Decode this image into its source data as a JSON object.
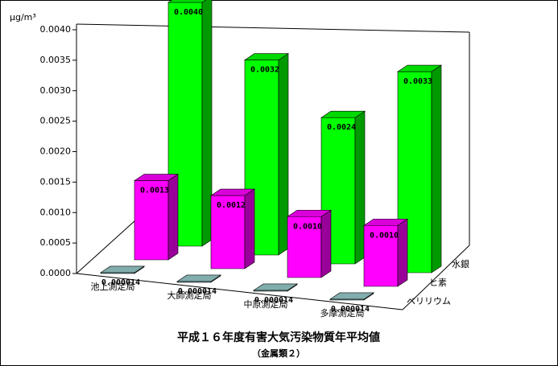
{
  "chart_data": {
    "type": "bar3d",
    "title": "平成１６年度有害大気汚染物質年平均値",
    "subtitle": "（金属類２）",
    "y_label": "μg/m³",
    "categories": [
      "池上測定局",
      "大師測定局",
      "中原測定局",
      "多摩測定局"
    ],
    "series": [
      {
        "name": "ベリリウム",
        "color": "#99cccc",
        "values": [
          1.4e-05,
          1.4e-05,
          1.4e-05,
          1.4e-05
        ],
        "value_labels": [
          "0.000014",
          "0.000014",
          "0.000014",
          "0.000014"
        ]
      },
      {
        "name": "ヒ素",
        "color": "#ff00ff",
        "values": [
          0.0013,
          0.0012,
          0.001,
          0.001
        ],
        "value_labels": [
          "0.0013",
          "0.0012",
          "0.0010",
          "0.0010"
        ]
      },
      {
        "name": "水銀",
        "color": "#00ff00",
        "values": [
          0.004,
          0.0032,
          0.0024,
          0.0033
        ],
        "value_labels": [
          "0.0040",
          "0.0032",
          "0.0024",
          "0.0033"
        ]
      }
    ],
    "ylim": [
      0,
      0.004
    ],
    "yticks": [
      {
        "value": 0,
        "label": "0.0000"
      },
      {
        "value": 0.0005,
        "label": "0.0005"
      },
      {
        "value": 0.001,
        "label": "0.0010"
      },
      {
        "value": 0.0015,
        "label": "0.0015"
      },
      {
        "value": 0.002,
        "label": "0.0020"
      },
      {
        "value": 0.0025,
        "label": "0.0025"
      },
      {
        "value": 0.003,
        "label": "0.0030"
      },
      {
        "value": 0.0035,
        "label": "0.0035"
      },
      {
        "value": 0.004,
        "label": "0.0040"
      }
    ]
  }
}
